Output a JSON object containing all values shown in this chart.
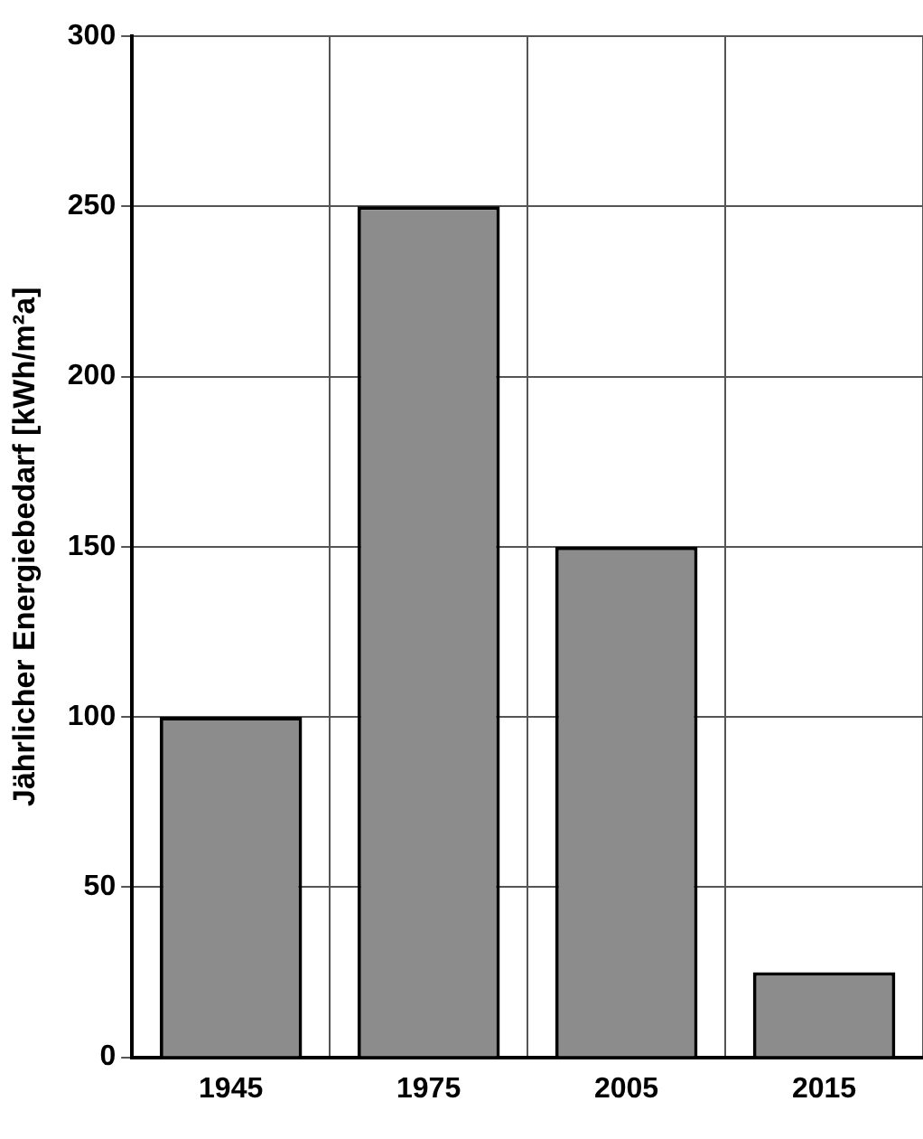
{
  "chart_data": {
    "type": "bar",
    "ylabel": "Jährlicher Energiebedarf [kWh/m²a]",
    "categories": [
      "1945",
      "1975",
      "2005",
      "2015"
    ],
    "values": [
      100,
      250,
      150,
      25
    ],
    "color": "#8c8c8c",
    "ylim": [
      0,
      300
    ],
    "yticks": [
      0,
      50,
      100,
      150,
      200,
      250,
      300
    ],
    "grid": true
  }
}
